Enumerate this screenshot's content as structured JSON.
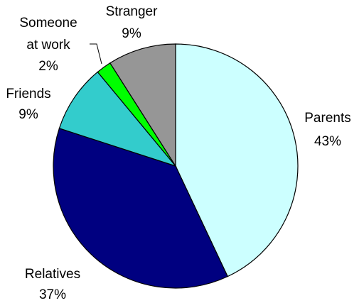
{
  "chart_data": {
    "type": "pie",
    "title": "",
    "slices": [
      {
        "label": "Parents",
        "value": 43,
        "display": "43%",
        "color": "#CCFFFF"
      },
      {
        "label": "Relatives",
        "value": 37,
        "display": "37%",
        "color": "#000080"
      },
      {
        "label": "Friends",
        "value": 9,
        "display": "9%",
        "color": "#33CCCC"
      },
      {
        "label": "Someone at work",
        "value": 2,
        "display": "2%",
        "color": "#00FF00"
      },
      {
        "label": "Stranger",
        "value": 9,
        "display": "9%",
        "color": "#969696"
      }
    ],
    "label_lines": {
      "Parents": [
        "Parents",
        "43%"
      ],
      "Relatives": [
        "Relatives",
        "37%"
      ],
      "Friends": [
        "Friends",
        "9%"
      ],
      "Someone at work": [
        "Someone",
        "at work",
        "2%"
      ],
      "Stranger": [
        "Stranger",
        "9%"
      ]
    },
    "legend": "none"
  }
}
